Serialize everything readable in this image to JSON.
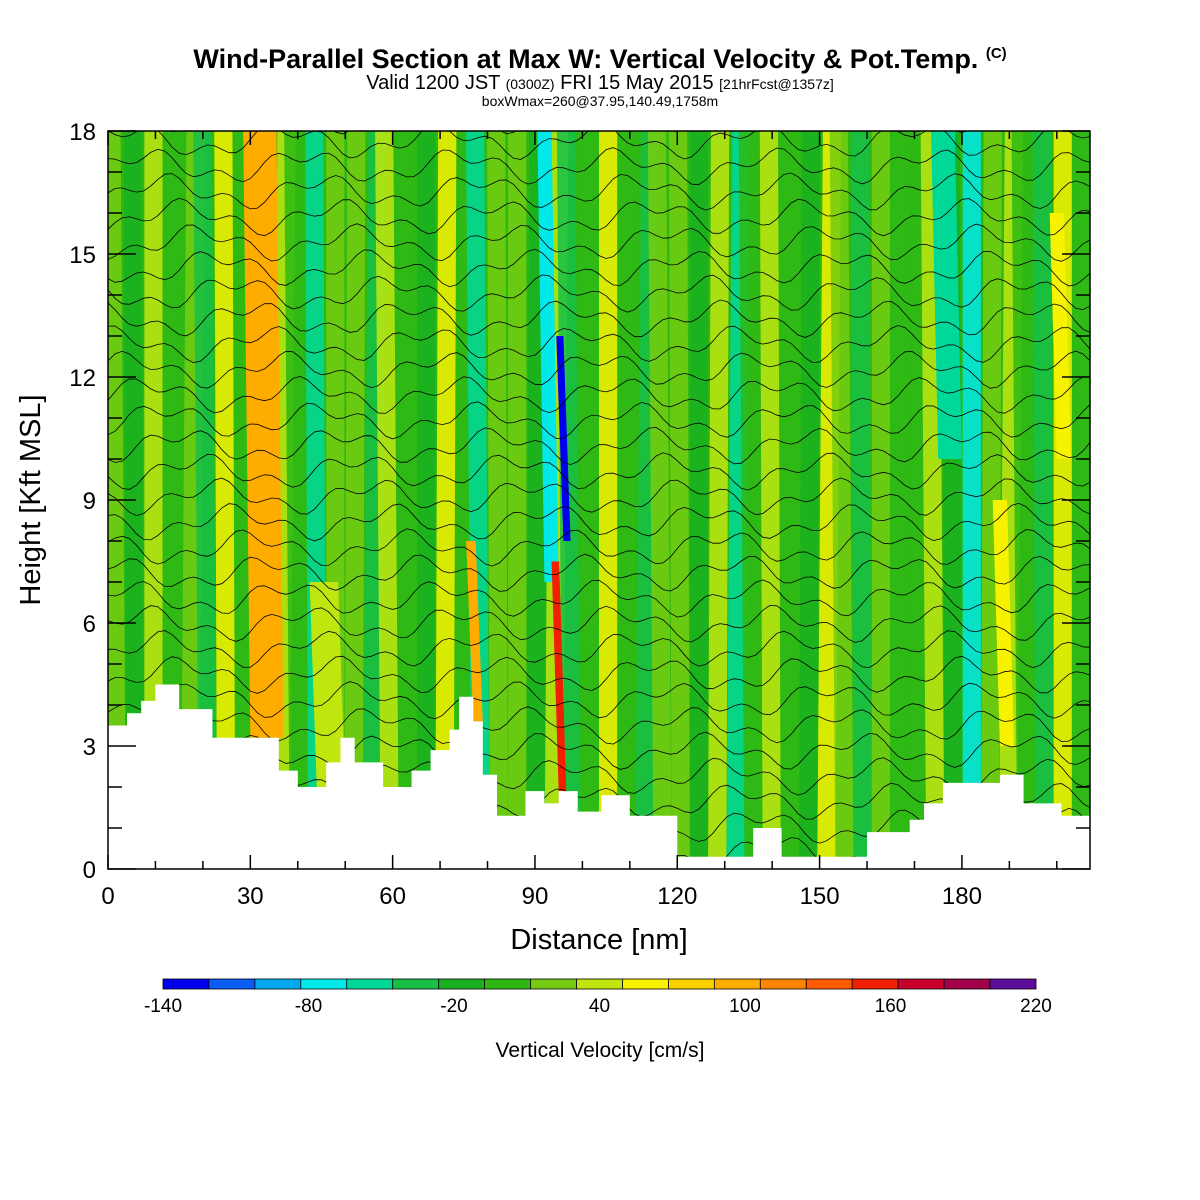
{
  "header": {
    "title": "Wind-Parallel Section at Max W: Vertical Velocity & Pot.Temp.",
    "copyright": "(C)",
    "valid_prefix": "Valid 1200 JST",
    "valid_utc": "(0300Z)",
    "valid_date": "FRI 15 May 2015",
    "forecast": "[21hrFcst@1357z]",
    "box_info": "boxWmax=260@37.95,140.49,1758m"
  },
  "chart_data": {
    "type": "heatmap",
    "title": "Wind-Parallel Section at Max W: Vertical Velocity & Pot.Temp.",
    "xlabel": "Distance [nm]",
    "ylabel": "Height [Kft MSL]",
    "xlim": [
      0,
      207
    ],
    "ylim": [
      0,
      18
    ],
    "x_ticks": [
      0,
      30,
      60,
      90,
      120,
      150,
      180
    ],
    "y_ticks": [
      0,
      3,
      6,
      9,
      12,
      15,
      18
    ],
    "colorbar": {
      "title": "Vertical Velocity [cm/s]",
      "min": -140,
      "max": 220,
      "step": 20,
      "tick_labels": [
        "-140",
        "-80",
        "-20",
        "40",
        "100",
        "160",
        "220"
      ],
      "tick_values": [
        -140,
        -80,
        -20,
        40,
        100,
        160,
        220
      ],
      "colors": [
        "#0000ee",
        "#0a5cf5",
        "#00a8f0",
        "#00e8e8",
        "#00d898",
        "#18c048",
        "#18b020",
        "#2eb814",
        "#74cc10",
        "#c0e610",
        "#f6f200",
        "#ffd000",
        "#ffac00",
        "#ff8400",
        "#ff5a00",
        "#f02000",
        "#c8002e",
        "#a0004a",
        "#5c0c98"
      ]
    },
    "terrain_kft": [
      [
        0,
        3.5
      ],
      [
        4,
        3.5
      ],
      [
        4,
        3.8
      ],
      [
        7,
        3.8
      ],
      [
        7,
        4.1
      ],
      [
        10,
        4.1
      ],
      [
        10,
        4.5
      ],
      [
        15,
        4.5
      ],
      [
        15,
        3.9
      ],
      [
        22,
        3.9
      ],
      [
        22,
        3.2
      ],
      [
        36,
        3.2
      ],
      [
        36,
        2.4
      ],
      [
        40,
        2.4
      ],
      [
        40,
        2.0
      ],
      [
        46,
        2.0
      ],
      [
        46,
        2.6
      ],
      [
        49,
        2.6
      ],
      [
        49,
        3.2
      ],
      [
        52,
        3.2
      ],
      [
        52,
        2.6
      ],
      [
        58,
        2.6
      ],
      [
        58,
        2.0
      ],
      [
        64,
        2.0
      ],
      [
        64,
        2.4
      ],
      [
        68,
        2.4
      ],
      [
        68,
        2.9
      ],
      [
        72,
        2.9
      ],
      [
        72,
        3.4
      ],
      [
        74,
        3.4
      ],
      [
        74,
        4.2
      ],
      [
        77,
        4.2
      ],
      [
        77,
        3.6
      ],
      [
        79,
        3.6
      ],
      [
        79,
        2.3
      ],
      [
        82,
        2.3
      ],
      [
        82,
        1.3
      ],
      [
        88,
        1.3
      ],
      [
        88,
        1.9
      ],
      [
        92,
        1.9
      ],
      [
        92,
        1.6
      ],
      [
        95,
        1.6
      ],
      [
        95,
        1.9
      ],
      [
        99,
        1.9
      ],
      [
        99,
        1.4
      ],
      [
        104,
        1.4
      ],
      [
        104,
        1.8
      ],
      [
        110,
        1.8
      ],
      [
        110,
        1.3
      ],
      [
        120,
        1.3
      ],
      [
        120,
        0.3
      ],
      [
        136,
        0.3
      ],
      [
        136,
        1.0
      ],
      [
        142,
        1.0
      ],
      [
        142,
        0.3
      ],
      [
        160,
        0.3
      ],
      [
        160,
        0.9
      ],
      [
        169,
        0.9
      ],
      [
        169,
        1.2
      ],
      [
        172,
        1.2
      ],
      [
        172,
        1.6
      ],
      [
        176,
        1.6
      ],
      [
        176,
        2.1
      ],
      [
        188,
        2.1
      ],
      [
        188,
        2.3
      ],
      [
        193,
        2.3
      ],
      [
        193,
        1.6
      ],
      [
        201,
        1.6
      ],
      [
        201,
        1.3
      ],
      [
        207,
        1.3
      ]
    ],
    "velocity_bands": [
      {
        "x": 30,
        "w": 7,
        "value": 100,
        "y0": 3.2,
        "y1": 18
      },
      {
        "x": 44,
        "w": 6,
        "value": 40,
        "y0": 2.0,
        "y1": 7
      },
      {
        "x": 77,
        "w": 2,
        "value": 100,
        "y0": 3.6,
        "y1": 8
      },
      {
        "x": 92,
        "w": 3,
        "value": -80,
        "y0": 7,
        "y1": 18
      },
      {
        "x": 95,
        "w": 1.6,
        "value": 160,
        "y0": 1.9,
        "y1": 7.5
      },
      {
        "x": 96,
        "w": 1.5,
        "value": -140,
        "y0": 8,
        "y1": 13
      },
      {
        "x": 175,
        "w": 5,
        "value": -60,
        "y0": 10,
        "y1": 18
      },
      {
        "x": 188,
        "w": 3,
        "value": 60,
        "y0": 3,
        "y1": 9
      },
      {
        "x": 200,
        "w": 3,
        "value": 60,
        "y0": 10,
        "y1": 16
      }
    ]
  }
}
